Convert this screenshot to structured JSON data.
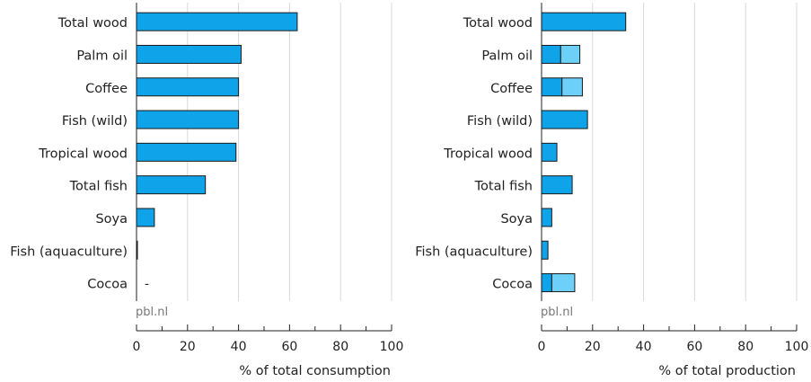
{
  "colors": {
    "primary": "#0fa4ea",
    "secondary": "#6cd0f8",
    "grid": "#d9d9d9",
    "axis": "#222222",
    "source": "#777777"
  },
  "chart_data": [
    {
      "type": "bar",
      "orientation": "horizontal",
      "categories": [
        "Total wood",
        "Palm oil",
        "Coffee",
        "Fish (wild)",
        "Tropical wood",
        "Total fish",
        "Soya",
        "Fish (aquaculture)",
        "Cocoa"
      ],
      "series": [
        {
          "values": [
            63,
            41,
            40,
            40,
            39,
            27,
            7,
            0.3,
            0
          ]
        }
      ],
      "annotations": [
        {
          "category": "Cocoa",
          "text": "-"
        }
      ],
      "xlabel": "% of total consumption",
      "xlim": [
        0,
        100
      ],
      "xticks": [
        "0",
        "20",
        "40",
        "60",
        "80",
        "100"
      ],
      "source": "pbl.nl",
      "grid": true
    },
    {
      "type": "bar",
      "orientation": "horizontal",
      "stacked": true,
      "categories": [
        "Total wood",
        "Palm oil",
        "Coffee",
        "Fish (wild)",
        "Tropical wood",
        "Total fish",
        "Soya",
        "Fish (aquaculture)",
        "Cocoa"
      ],
      "series": [
        {
          "values": [
            33,
            7.5,
            8,
            18,
            6,
            12,
            4,
            2.5,
            4
          ]
        },
        {
          "values": [
            0,
            7.5,
            8,
            0,
            0,
            0,
            0,
            0,
            9
          ]
        }
      ],
      "xlabel": "% of total production",
      "xlim": [
        0,
        100
      ],
      "xticks": [
        "0",
        "20",
        "40",
        "60",
        "80",
        "100"
      ],
      "source": "pbl.nl",
      "grid": true
    }
  ]
}
